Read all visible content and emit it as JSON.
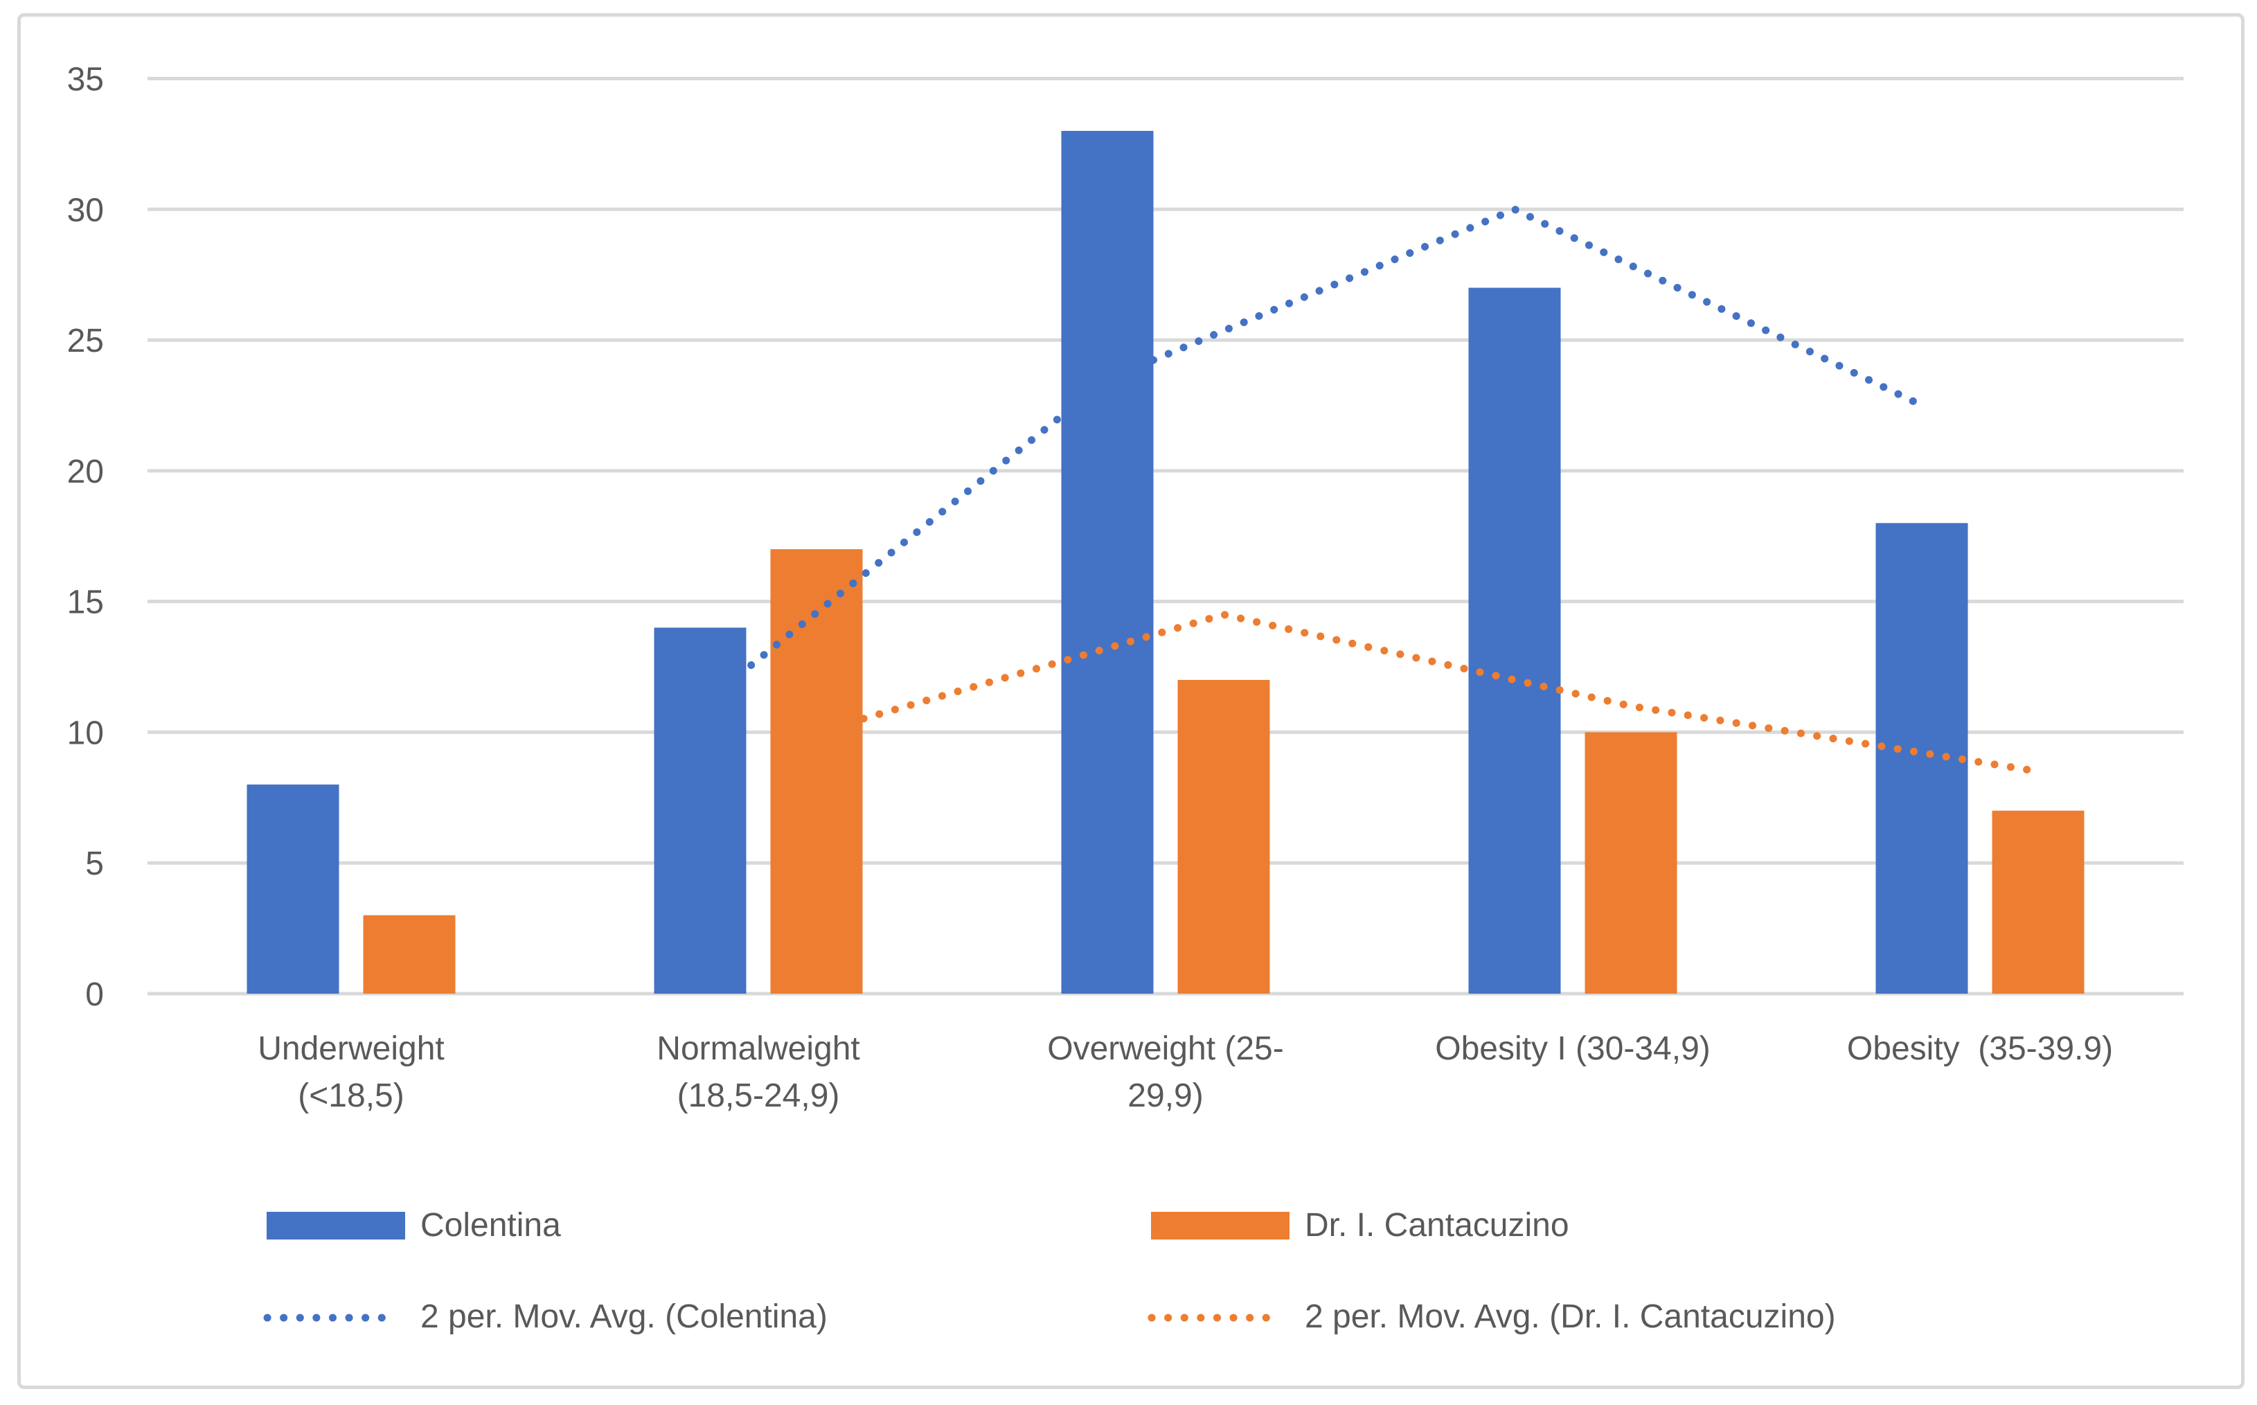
{
  "chart_data": {
    "type": "bar",
    "title": "",
    "xlabel": "",
    "ylabel": "",
    "categories": [
      "Underweight (<18,5)",
      "Normalweight (18,5-24,9)",
      "Overweight (25-29,9)",
      "Obesity I (30-34,9)",
      "Obesity  (35-39.9)"
    ],
    "category_label_lines": [
      [
        "Underweight",
        "(<18,5)"
      ],
      [
        "Normalweight",
        "(18,5-24,9)"
      ],
      [
        "Overweight (25-",
        "29,9)"
      ],
      [
        "Obesity I (30-34,9)"
      ],
      [
        "Obesity  (35-39.9)"
      ]
    ],
    "series": [
      {
        "name": "Colentina",
        "color": "#4472C4",
        "values": [
          8,
          14,
          33,
          27,
          18
        ]
      },
      {
        "name": "Dr. I. Cantacuzino",
        "color": "#ED7D31",
        "values": [
          3,
          17,
          12,
          10,
          7
        ]
      }
    ],
    "trendlines": [
      {
        "name": "2 per. Mov. Avg. (Colentina)",
        "color": "#4472C4",
        "series_index": 0,
        "start_category_index": 1,
        "values": [
          11,
          23.5,
          30,
          22.5
        ]
      },
      {
        "name": "2 per. Mov. Avg. (Dr. I. Cantacuzino)",
        "color": "#ED7D31",
        "series_index": 1,
        "start_category_index": 1,
        "values": [
          10,
          14.5,
          11,
          8.5
        ]
      }
    ],
    "yticks": [
      0,
      5,
      10,
      15,
      20,
      25,
      30,
      35
    ],
    "ylim": [
      0,
      35
    ],
    "grid": "horizontal",
    "legend_position": "bottom",
    "colors": {
      "grid": "#D9D9D9",
      "frame": "#D9D9D9",
      "text": "#595959",
      "background": "#FFFFFF"
    }
  },
  "legend": {
    "entries": [
      {
        "label": "Colentina",
        "style": "solid",
        "color": "#4472C4"
      },
      {
        "label": "Dr. I. Cantacuzino",
        "style": "solid",
        "color": "#ED7D31"
      },
      {
        "label": "2 per. Mov. Avg. (Colentina)",
        "style": "dotted",
        "color": "#4472C4"
      },
      {
        "label": "2 per. Mov. Avg. (Dr. I. Cantacuzino)",
        "style": "dotted",
        "color": "#ED7D31"
      }
    ]
  }
}
